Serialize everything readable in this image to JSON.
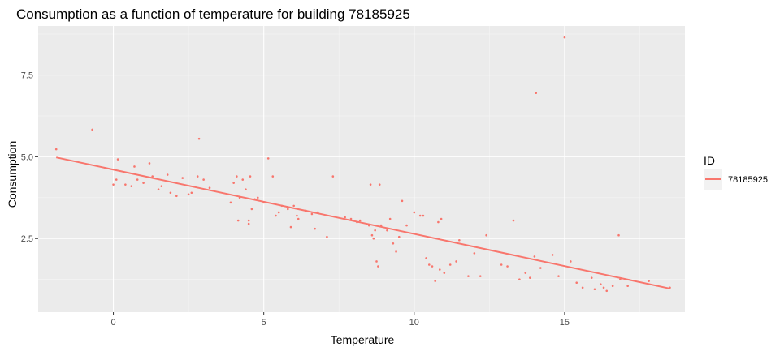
{
  "chart_data": {
    "type": "scatter",
    "title": "Consumption as a function of temperature for building 78185925",
    "xlabel": "Temperature",
    "ylabel": "Consumption",
    "xlim": [
      -2.5,
      19.0
    ],
    "ylim": [
      0.25,
      9.0
    ],
    "x_ticks": [
      0,
      5,
      10,
      15
    ],
    "x_tick_labels": [
      "0",
      "5",
      "10",
      "15"
    ],
    "y_ticks": [
      2.5,
      5.0,
      7.5
    ],
    "y_tick_labels": [
      "2.5",
      "5.0",
      "7.5"
    ],
    "grid": true,
    "legend": {
      "title": "ID",
      "position": "right",
      "entries": [
        "78185925"
      ]
    },
    "colors": {
      "series": "#f8766d",
      "panel": "#ebebeb",
      "grid_major": "#ffffff",
      "grid_minor": "#f5f5f5"
    },
    "trend_line": {
      "x": [
        -1.9,
        18.5
      ],
      "y": [
        4.98,
        0.97
      ]
    },
    "series": [
      {
        "name": "78185925",
        "points": [
          [
            -1.9,
            5.23
          ],
          [
            -0.7,
            5.83
          ],
          [
            0.0,
            4.15
          ],
          [
            0.1,
            4.3
          ],
          [
            0.15,
            4.92
          ],
          [
            0.4,
            4.15
          ],
          [
            0.6,
            4.1
          ],
          [
            0.7,
            4.7
          ],
          [
            0.8,
            4.3
          ],
          [
            1.0,
            4.2
          ],
          [
            1.2,
            4.8
          ],
          [
            1.3,
            4.4
          ],
          [
            1.5,
            4.0
          ],
          [
            1.6,
            4.1
          ],
          [
            1.8,
            4.45
          ],
          [
            1.9,
            3.9
          ],
          [
            2.1,
            3.8
          ],
          [
            2.3,
            4.35
          ],
          [
            2.5,
            3.85
          ],
          [
            2.6,
            3.9
          ],
          [
            2.8,
            4.4
          ],
          [
            2.85,
            5.55
          ],
          [
            3.0,
            4.3
          ],
          [
            3.2,
            4.05
          ],
          [
            3.9,
            3.6
          ],
          [
            4.0,
            4.2
          ],
          [
            4.1,
            4.4
          ],
          [
            4.15,
            3.05
          ],
          [
            4.2,
            3.75
          ],
          [
            4.3,
            4.3
          ],
          [
            4.4,
            4.0
          ],
          [
            4.5,
            3.05
          ],
          [
            4.5,
            2.95
          ],
          [
            4.55,
            4.4
          ],
          [
            4.6,
            3.4
          ],
          [
            4.7,
            3.7
          ],
          [
            4.8,
            3.75
          ],
          [
            5.0,
            3.6
          ],
          [
            5.15,
            4.95
          ],
          [
            5.3,
            4.4
          ],
          [
            5.4,
            3.2
          ],
          [
            5.5,
            3.3
          ],
          [
            5.6,
            3.5
          ],
          [
            5.8,
            3.4
          ],
          [
            5.9,
            2.85
          ],
          [
            6.0,
            3.5
          ],
          [
            6.1,
            3.2
          ],
          [
            6.15,
            3.1
          ],
          [
            6.4,
            3.35
          ],
          [
            6.6,
            3.25
          ],
          [
            6.7,
            2.8
          ],
          [
            6.8,
            3.3
          ],
          [
            7.1,
            2.55
          ],
          [
            7.3,
            4.4
          ],
          [
            7.7,
            3.15
          ],
          [
            7.9,
            3.1
          ],
          [
            8.1,
            3.0
          ],
          [
            8.2,
            3.05
          ],
          [
            8.5,
            2.9
          ],
          [
            8.55,
            4.15
          ],
          [
            8.6,
            2.6
          ],
          [
            8.65,
            2.5
          ],
          [
            8.7,
            2.75
          ],
          [
            8.75,
            1.8
          ],
          [
            8.8,
            1.65
          ],
          [
            8.85,
            4.15
          ],
          [
            8.9,
            2.9
          ],
          [
            9.1,
            2.75
          ],
          [
            9.2,
            3.1
          ],
          [
            9.3,
            2.35
          ],
          [
            9.4,
            2.1
          ],
          [
            9.5,
            2.55
          ],
          [
            9.6,
            3.65
          ],
          [
            9.75,
            2.9
          ],
          [
            10.0,
            3.3
          ],
          [
            10.2,
            3.2
          ],
          [
            10.3,
            3.2
          ],
          [
            10.4,
            1.9
          ],
          [
            10.5,
            1.7
          ],
          [
            10.6,
            1.65
          ],
          [
            10.7,
            1.2
          ],
          [
            10.8,
            3.0
          ],
          [
            10.85,
            1.55
          ],
          [
            10.9,
            3.1
          ],
          [
            11.0,
            1.45
          ],
          [
            11.2,
            1.7
          ],
          [
            11.4,
            1.8
          ],
          [
            11.5,
            2.45
          ],
          [
            11.8,
            1.35
          ],
          [
            12.0,
            2.05
          ],
          [
            12.2,
            1.35
          ],
          [
            12.4,
            2.6
          ],
          [
            12.9,
            1.7
          ],
          [
            13.1,
            1.65
          ],
          [
            13.3,
            3.05
          ],
          [
            13.5,
            1.25
          ],
          [
            13.7,
            1.45
          ],
          [
            13.85,
            1.3
          ],
          [
            14.0,
            1.95
          ],
          [
            14.05,
            6.95
          ],
          [
            14.2,
            1.6
          ],
          [
            14.6,
            2.0
          ],
          [
            14.8,
            1.35
          ],
          [
            15.0,
            8.65
          ],
          [
            15.2,
            1.8
          ],
          [
            15.4,
            1.15
          ],
          [
            15.6,
            1.0
          ],
          [
            15.9,
            1.3
          ],
          [
            16.0,
            0.95
          ],
          [
            16.2,
            1.1
          ],
          [
            16.3,
            1.0
          ],
          [
            16.4,
            0.9
          ],
          [
            16.6,
            1.05
          ],
          [
            16.8,
            2.6
          ],
          [
            16.85,
            1.25
          ],
          [
            17.1,
            1.05
          ],
          [
            17.8,
            1.2
          ],
          [
            18.5,
            1.0
          ]
        ]
      }
    ]
  }
}
